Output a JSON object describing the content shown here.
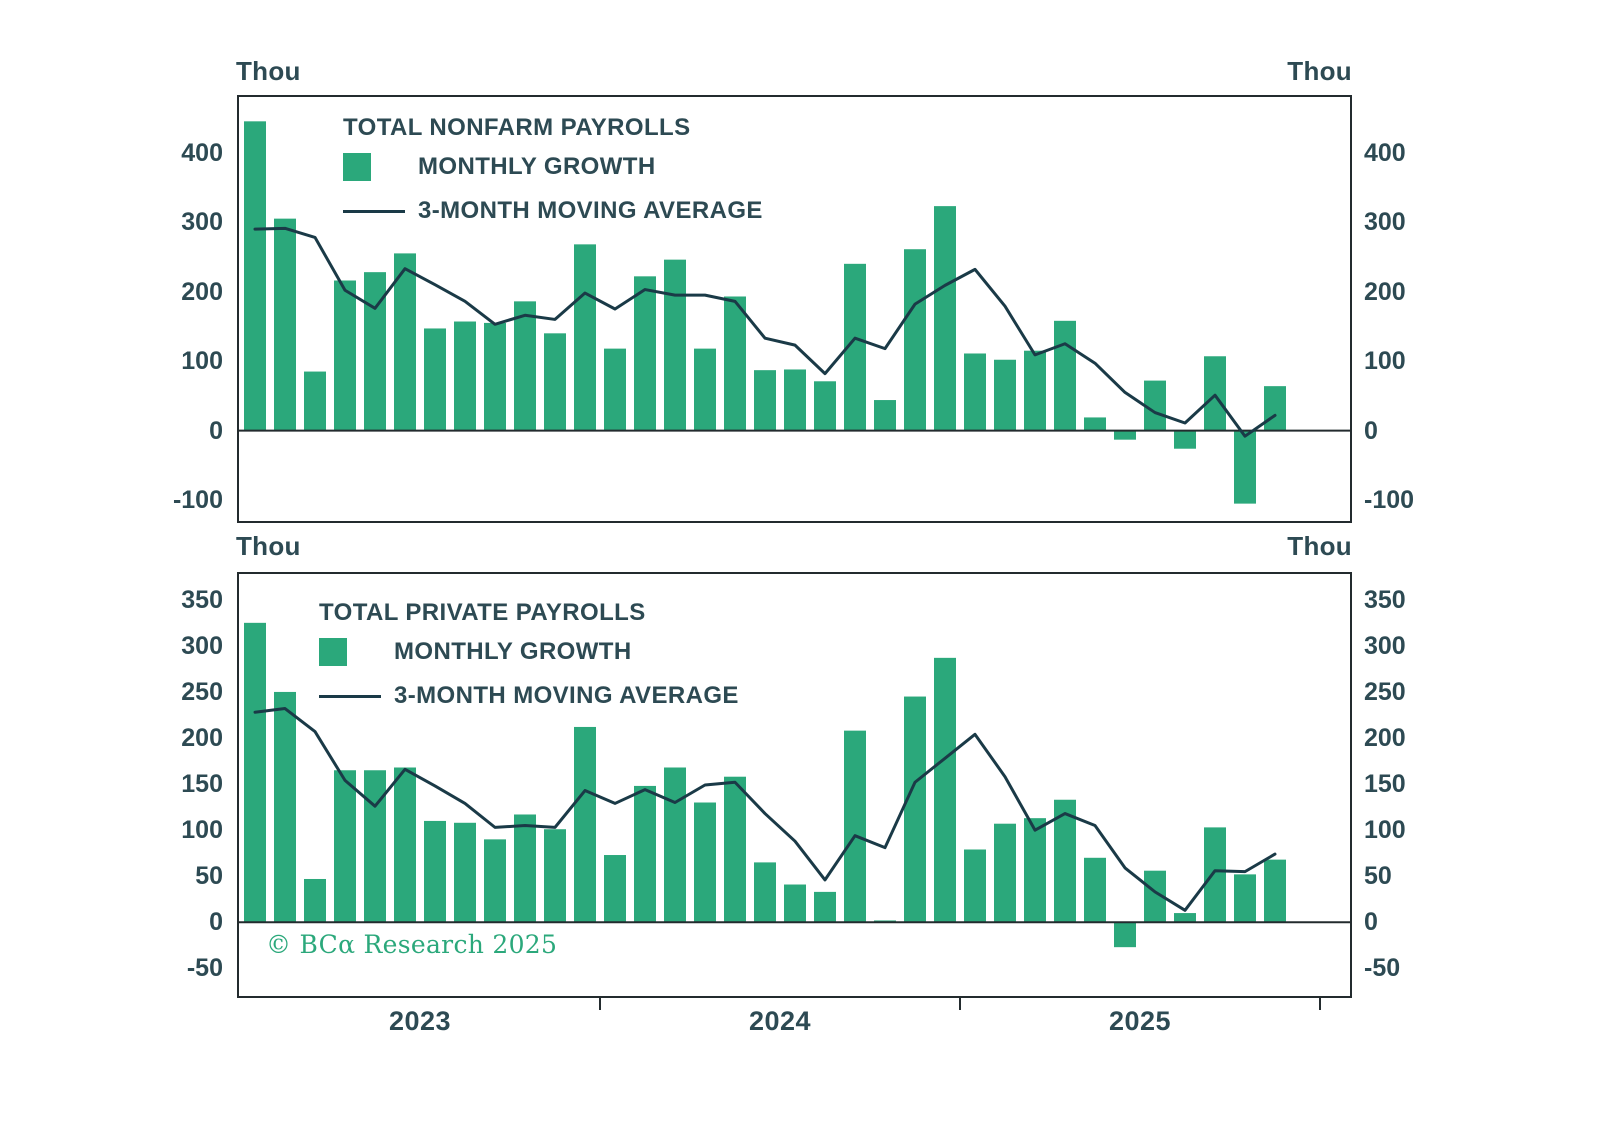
{
  "colors": {
    "bar_green": "#2BA87B",
    "ma_line": "#1A3A47",
    "axis": "#232B2E",
    "label_text": "#2D4A53",
    "copyright_green": "#2BA87B"
  },
  "x_axis": {
    "year_labels": [
      "2023",
      "2024",
      "2025"
    ]
  },
  "copyright": "© BCα Research 2025",
  "chart_data": [
    {
      "type": "bar",
      "title": "TOTAL NONFARM PAYROLLS",
      "unit": "Thou",
      "legend_position": "top-left",
      "ylim": [
        -130,
        480
      ],
      "yticks": [
        400,
        300,
        200,
        100,
        0,
        -100
      ],
      "categories": [
        "2023-01",
        "2023-02",
        "2023-03",
        "2023-04",
        "2023-05",
        "2023-06",
        "2023-07",
        "2023-08",
        "2023-09",
        "2023-10",
        "2023-11",
        "2023-12",
        "2024-01",
        "2024-02",
        "2024-03",
        "2024-04",
        "2024-05",
        "2024-06",
        "2024-07",
        "2024-08",
        "2024-09",
        "2024-10",
        "2024-11",
        "2024-12",
        "2025-01",
        "2025-02",
        "2025-03",
        "2025-04",
        "2025-05",
        "2025-06",
        "2025-07",
        "2025-08",
        "2025-09",
        "2025-10",
        "2025-11"
      ],
      "series": [
        {
          "name": "MONTHLY GROWTH",
          "kind": "bar",
          "values": [
            445,
            305,
            85,
            216,
            228,
            255,
            147,
            157,
            155,
            186,
            140,
            268,
            118,
            222,
            246,
            118,
            193,
            87,
            88,
            71,
            240,
            44,
            261,
            323,
            111,
            102,
            115,
            158,
            19,
            -13,
            72,
            -26,
            107,
            -105,
            64
          ]
        },
        {
          "name": "3-MONTH MOVING AVERAGE",
          "kind": "line",
          "values": [
            290,
            291,
            278,
            202,
            176,
            233,
            210,
            186,
            153,
            166,
            160,
            198,
            175,
            203,
            195,
            195,
            186,
            133,
            123,
            82,
            133,
            118,
            182,
            209,
            232,
            179,
            109,
            125,
            97,
            55,
            26,
            11,
            51,
            -8,
            22
          ]
        }
      ]
    },
    {
      "type": "bar",
      "title": "TOTAL PRIVATE PAYROLLS",
      "unit": "Thou",
      "legend_position": "top-left",
      "ylim": [
        -80,
        378
      ],
      "yticks": [
        350,
        300,
        250,
        200,
        150,
        100,
        50,
        0,
        -50
      ],
      "categories": [
        "2023-01",
        "2023-02",
        "2023-03",
        "2023-04",
        "2023-05",
        "2023-06",
        "2023-07",
        "2023-08",
        "2023-09",
        "2023-10",
        "2023-11",
        "2023-12",
        "2024-01",
        "2024-02",
        "2024-03",
        "2024-04",
        "2024-05",
        "2024-06",
        "2024-07",
        "2024-08",
        "2024-09",
        "2024-10",
        "2024-11",
        "2024-12",
        "2025-01",
        "2025-02",
        "2025-03",
        "2025-04",
        "2025-05",
        "2025-06",
        "2025-07",
        "2025-08",
        "2025-09",
        "2025-10",
        "2025-11"
      ],
      "series": [
        {
          "name": "MONTHLY GROWTH",
          "kind": "bar",
          "values": [
            325,
            250,
            47,
            165,
            165,
            168,
            110,
            108,
            90,
            117,
            101,
            212,
            73,
            148,
            168,
            130,
            158,
            65,
            41,
            33,
            208,
            2,
            245,
            287,
            79,
            107,
            113,
            133,
            70,
            -27,
            56,
            10,
            103,
            52,
            68
          ]
        },
        {
          "name": "3-MONTH MOVING AVERAGE",
          "kind": "line",
          "values": [
            228,
            232,
            207,
            154,
            126,
            166,
            148,
            129,
            103,
            105,
            103,
            143,
            129,
            144,
            130,
            149,
            152,
            118,
            88,
            46,
            94,
            81,
            152,
            178,
            204,
            158,
            100,
            118,
            105,
            59,
            33,
            13,
            56,
            55,
            74
          ]
        }
      ]
    }
  ]
}
